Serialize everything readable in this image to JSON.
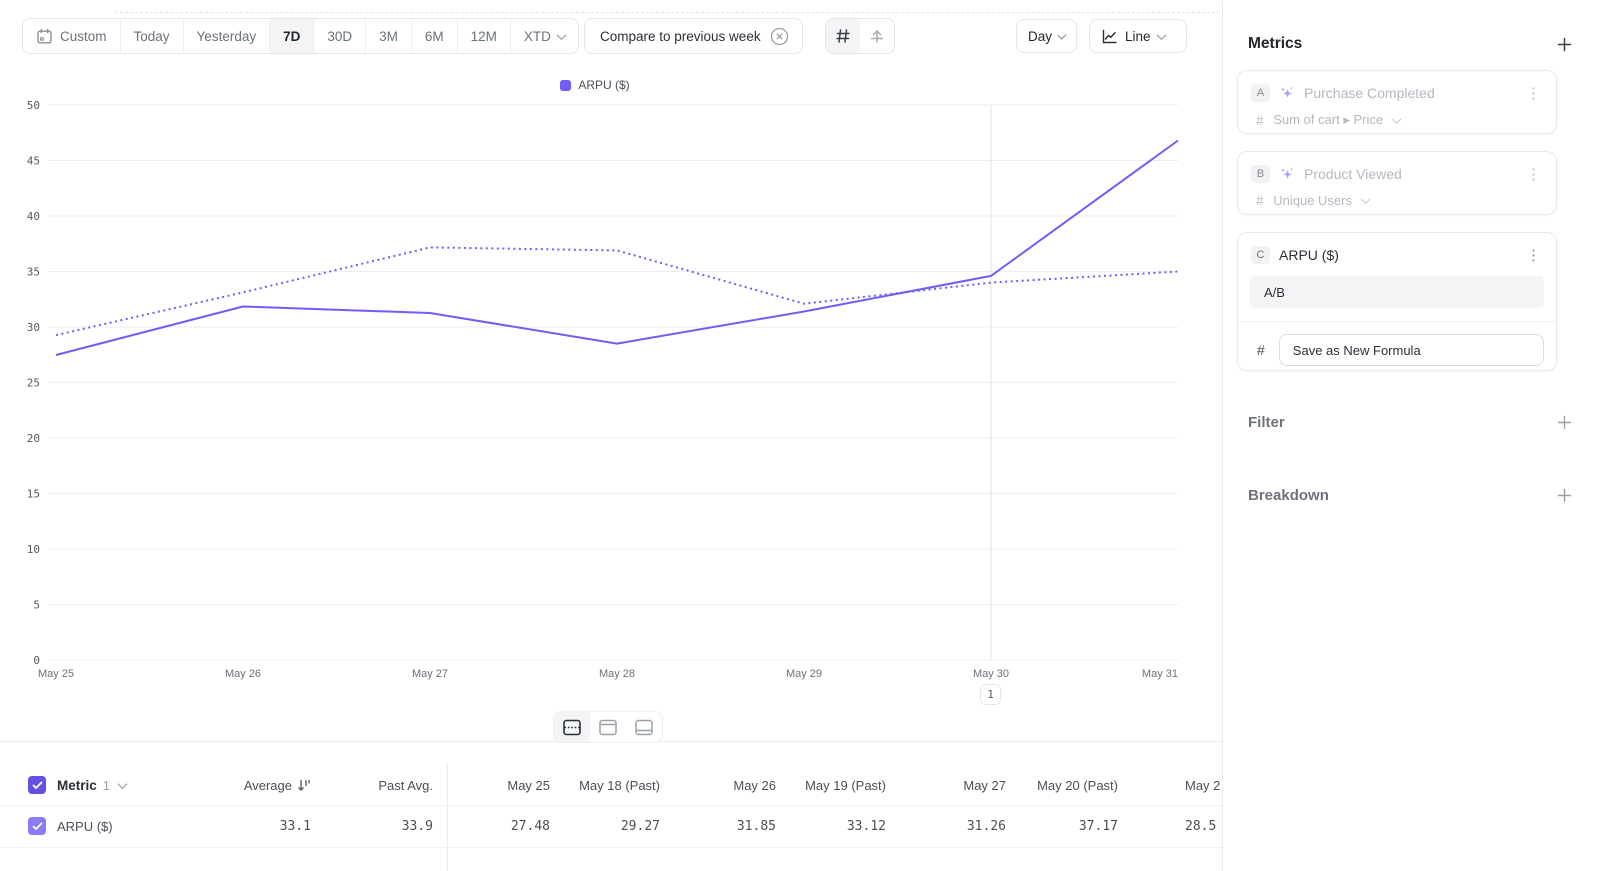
{
  "toolbar": {
    "date_ranges": [
      "Custom",
      "Today",
      "Yesterday",
      "7D",
      "30D",
      "3M",
      "6M",
      "12M",
      "XTD"
    ],
    "selected_range": "7D",
    "compare_chip_label": "Compare to previous week",
    "granularity_label": "Day",
    "chart_type_label": "Line"
  },
  "chart_data": {
    "type": "line",
    "title": "",
    "legend": [
      "ARPU ($)"
    ],
    "legend_position": "top-center",
    "x": [
      "May 25",
      "May 26",
      "May 27",
      "May 28",
      "May 29",
      "May 30",
      "May 31"
    ],
    "series": [
      {
        "name": "ARPU ($)",
        "style": "solid",
        "values": [
          27.48,
          31.85,
          31.26,
          28.5,
          31.4,
          34.6,
          46.8
        ]
      },
      {
        "name": "ARPU ($) previous week",
        "style": "dotted",
        "values": [
          29.27,
          33.12,
          37.17,
          36.9,
          32.1,
          34.0,
          35.0
        ]
      }
    ],
    "ylim": [
      0,
      50
    ],
    "yticks": [
      0,
      5,
      10,
      15,
      20,
      25,
      30,
      35,
      40,
      45,
      50
    ],
    "grid": "horizontal",
    "line_color": "#6e5ef6",
    "annotation": {
      "x": "May 30",
      "label": "1"
    }
  },
  "sidebar": {
    "metrics_title": "Metrics",
    "cards": [
      {
        "badge": "A",
        "title": "Purchase Completed",
        "measure_symbol": "#",
        "measure": "Sum of cart ▸ Price",
        "disabled": true
      },
      {
        "badge": "B",
        "title": "Product Viewed",
        "measure_symbol": "#",
        "measure": "Unique Users",
        "disabled": true
      },
      {
        "badge": "C",
        "title": "ARPU ($)",
        "measure_symbol": "#",
        "formula": "A/B",
        "save_button_label": "Save as New Formula"
      }
    ],
    "filter_title": "Filter",
    "breakdown_title": "Breakdown"
  },
  "table": {
    "metric_header": "Metric",
    "metric_count": "1",
    "columns": [
      "Average",
      "Past Avg.",
      "May 25",
      "May 18 (Past)",
      "May 26",
      "May 19 (Past)",
      "May 27",
      "May 20 (Past)",
      "May 2"
    ],
    "rows": [
      {
        "label": "ARPU ($)",
        "values": [
          "33.1",
          "33.9",
          "27.48",
          "29.27",
          "31.85",
          "33.12",
          "31.26",
          "37.17",
          "28.5"
        ]
      }
    ]
  },
  "colors": {
    "accent_purple": "#6e5ef6",
    "row_checkbox_purple": "#8b7cf7",
    "header_checkbox_purple": "#6152e2"
  }
}
